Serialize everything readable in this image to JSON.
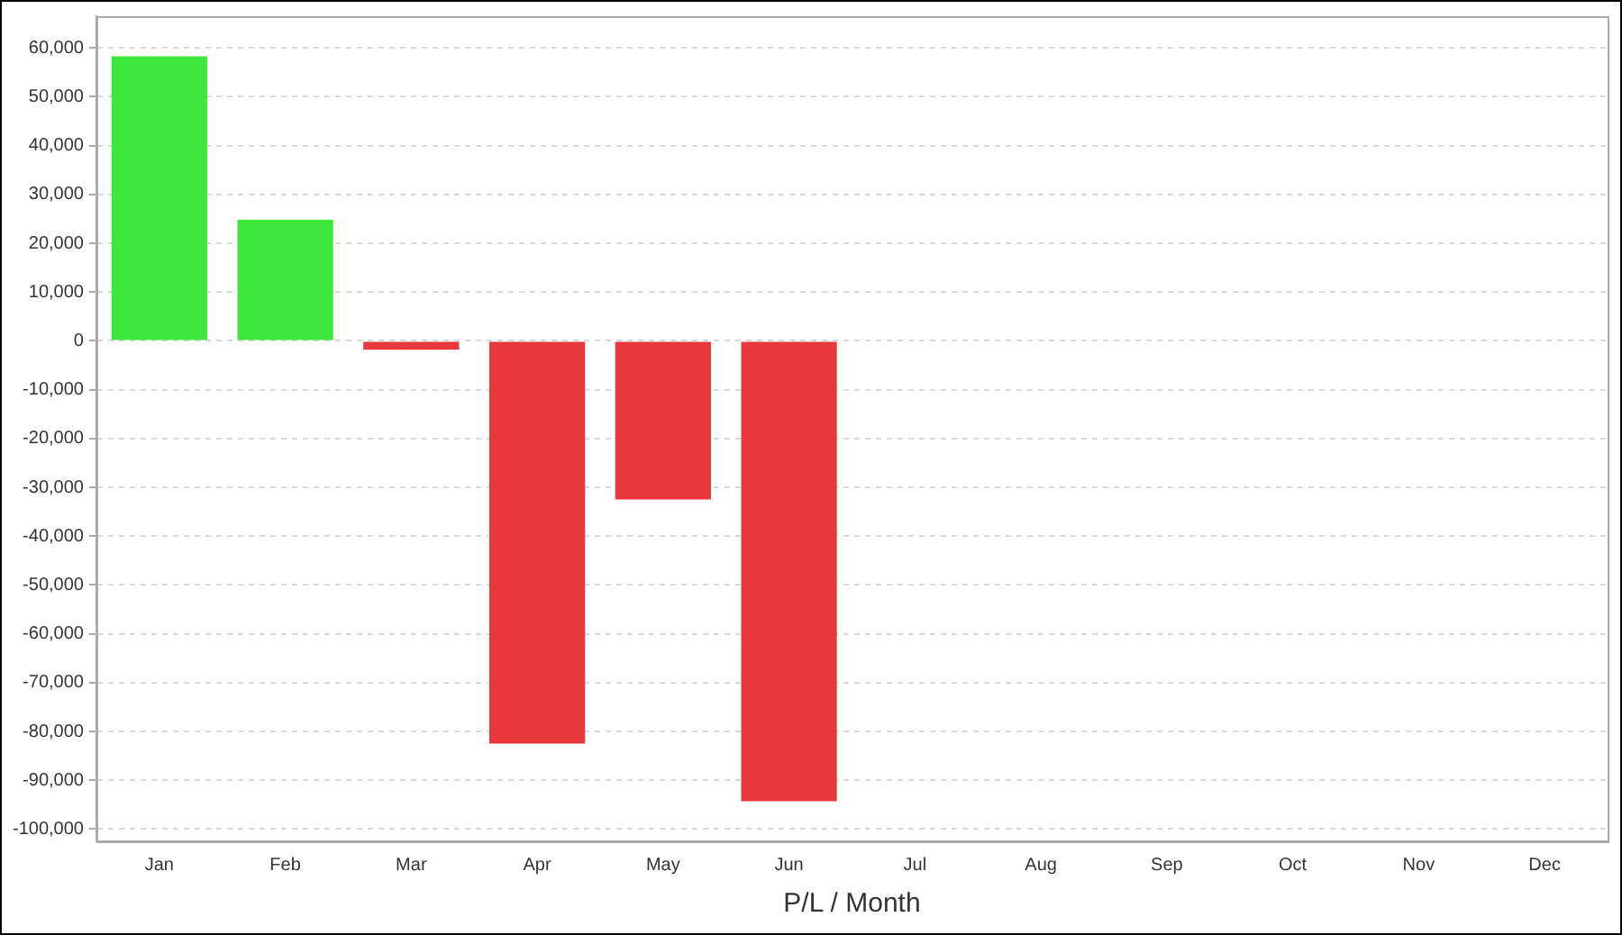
{
  "chart_data": {
    "type": "bar",
    "xlabel": "P/L / Month",
    "categories": [
      "Jan",
      "Feb",
      "Mar",
      "Apr",
      "May",
      "Jun",
      "Jul",
      "Aug",
      "Sep",
      "Oct",
      "Nov",
      "Dec"
    ],
    "values": [
      58300,
      24800,
      -1800,
      -82500,
      -32500,
      -94300,
      null,
      null,
      null,
      null,
      null,
      null
    ],
    "colors": [
      "#3de83d",
      "#3de83d",
      "#e8383d",
      "#e8383d",
      "#e8383d",
      "#e8383d",
      "#e8383d",
      "#e8383d",
      "#e8383d",
      "#e8383d",
      "#e8383d",
      "#e8383d"
    ],
    "ylim": [
      -102500,
      66500
    ],
    "yticks": [
      {
        "value": 60000,
        "label": "60,000"
      },
      {
        "value": 50000,
        "label": "50,000"
      },
      {
        "value": 40000,
        "label": "40,000"
      },
      {
        "value": 30000,
        "label": "30,000"
      },
      {
        "value": 20000,
        "label": "20,000"
      },
      {
        "value": 10000,
        "label": "10,000"
      },
      0,
      {
        "value": -10000,
        "label": "-10,000"
      },
      {
        "value": -20000,
        "label": "-20,000"
      },
      {
        "value": -30000,
        "label": "-30,000"
      },
      {
        "value": -40000,
        "label": "-40,000"
      },
      {
        "value": -50000,
        "label": "-50,000"
      },
      {
        "value": -60000,
        "label": "-60,000"
      },
      {
        "value": -70000,
        "label": "-70,000"
      },
      {
        "value": -80000,
        "label": "-80,000"
      },
      {
        "value": -90000,
        "label": "-90,000"
      },
      {
        "value": -100000,
        "label": "-100,000"
      }
    ],
    "grid": "y"
  }
}
